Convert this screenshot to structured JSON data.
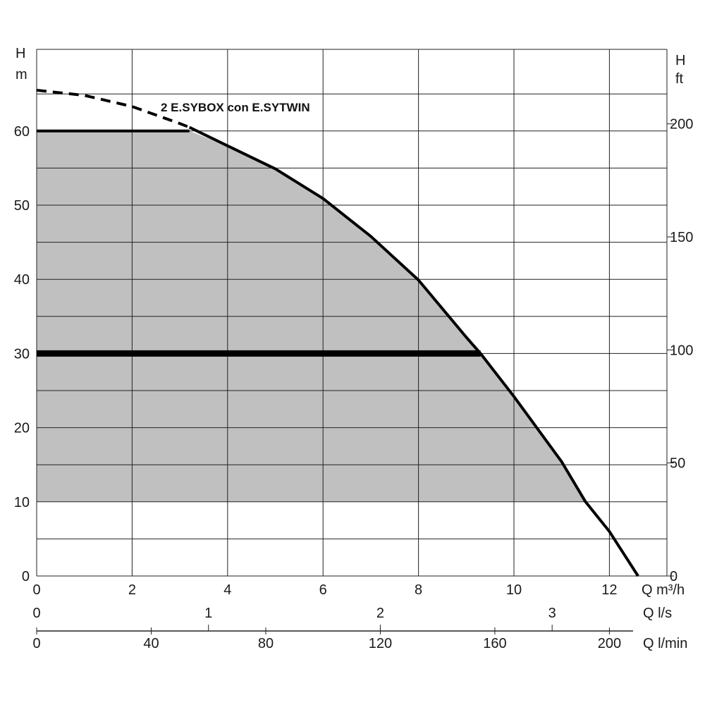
{
  "chart_data": {
    "type": "area",
    "title": "",
    "curve_label": "2 E.SYBOX con E.SYTWIN",
    "y_left": {
      "label_top": "H",
      "label_unit": "m",
      "min": 0,
      "max": 70,
      "ticks": [
        0,
        10,
        20,
        30,
        40,
        50,
        60
      ]
    },
    "y_right": {
      "label_top": "H",
      "label_unit": "ft",
      "ticks": [
        0,
        50,
        100,
        150,
        200
      ]
    },
    "x_axes": [
      {
        "unit_label": "Q m³/h",
        "min": 0,
        "max": 13.5,
        "ticks": [
          0,
          2,
          4,
          6,
          8,
          10,
          12
        ]
      },
      {
        "unit_label": "Q l/s",
        "ticks": [
          0,
          1,
          2,
          3
        ]
      },
      {
        "unit_label": "Q l/min",
        "ticks": [
          0,
          40,
          80,
          120,
          160,
          200
        ]
      }
    ],
    "grid": true,
    "series": [
      {
        "name": "2 E.SYBOX con E.SYTWIN",
        "style": "pump-curve",
        "dashed_part": [
          [
            0,
            65.5
          ],
          [
            1,
            64.8
          ],
          [
            2,
            63.3
          ],
          [
            3,
            61.0
          ],
          [
            3.2,
            60.5
          ]
        ],
        "solid_part": [
          [
            3.2,
            60.5
          ],
          [
            4,
            58.0
          ],
          [
            5,
            54.9
          ],
          [
            6,
            50.9
          ],
          [
            7,
            45.8
          ],
          [
            8,
            39.9
          ],
          [
            9,
            32.2
          ],
          [
            9.3,
            30
          ],
          [
            10,
            24.2
          ],
          [
            11,
            15.4
          ],
          [
            11.5,
            10
          ],
          [
            12,
            6.0
          ],
          [
            12.6,
            0
          ]
        ]
      },
      {
        "name": "",
        "style": "limit-line",
        "points": [
          [
            0,
            60
          ],
          [
            3.2,
            60
          ]
        ]
      },
      {
        "name": "",
        "style": "setpoint-line",
        "points": [
          [
            0,
            30
          ],
          [
            9.3,
            30
          ]
        ]
      }
    ],
    "shaded_region": {
      "y_min": 10,
      "boundary": [
        [
          0,
          60
        ],
        [
          3.2,
          60
        ],
        [
          4,
          58.0
        ],
        [
          5,
          54.9
        ],
        [
          6,
          50.9
        ],
        [
          7,
          45.8
        ],
        [
          8,
          39.9
        ],
        [
          9,
          32.2
        ],
        [
          10,
          24.2
        ],
        [
          11,
          15.4
        ],
        [
          11.5,
          10
        ]
      ],
      "color": "#c0c0c0"
    }
  }
}
